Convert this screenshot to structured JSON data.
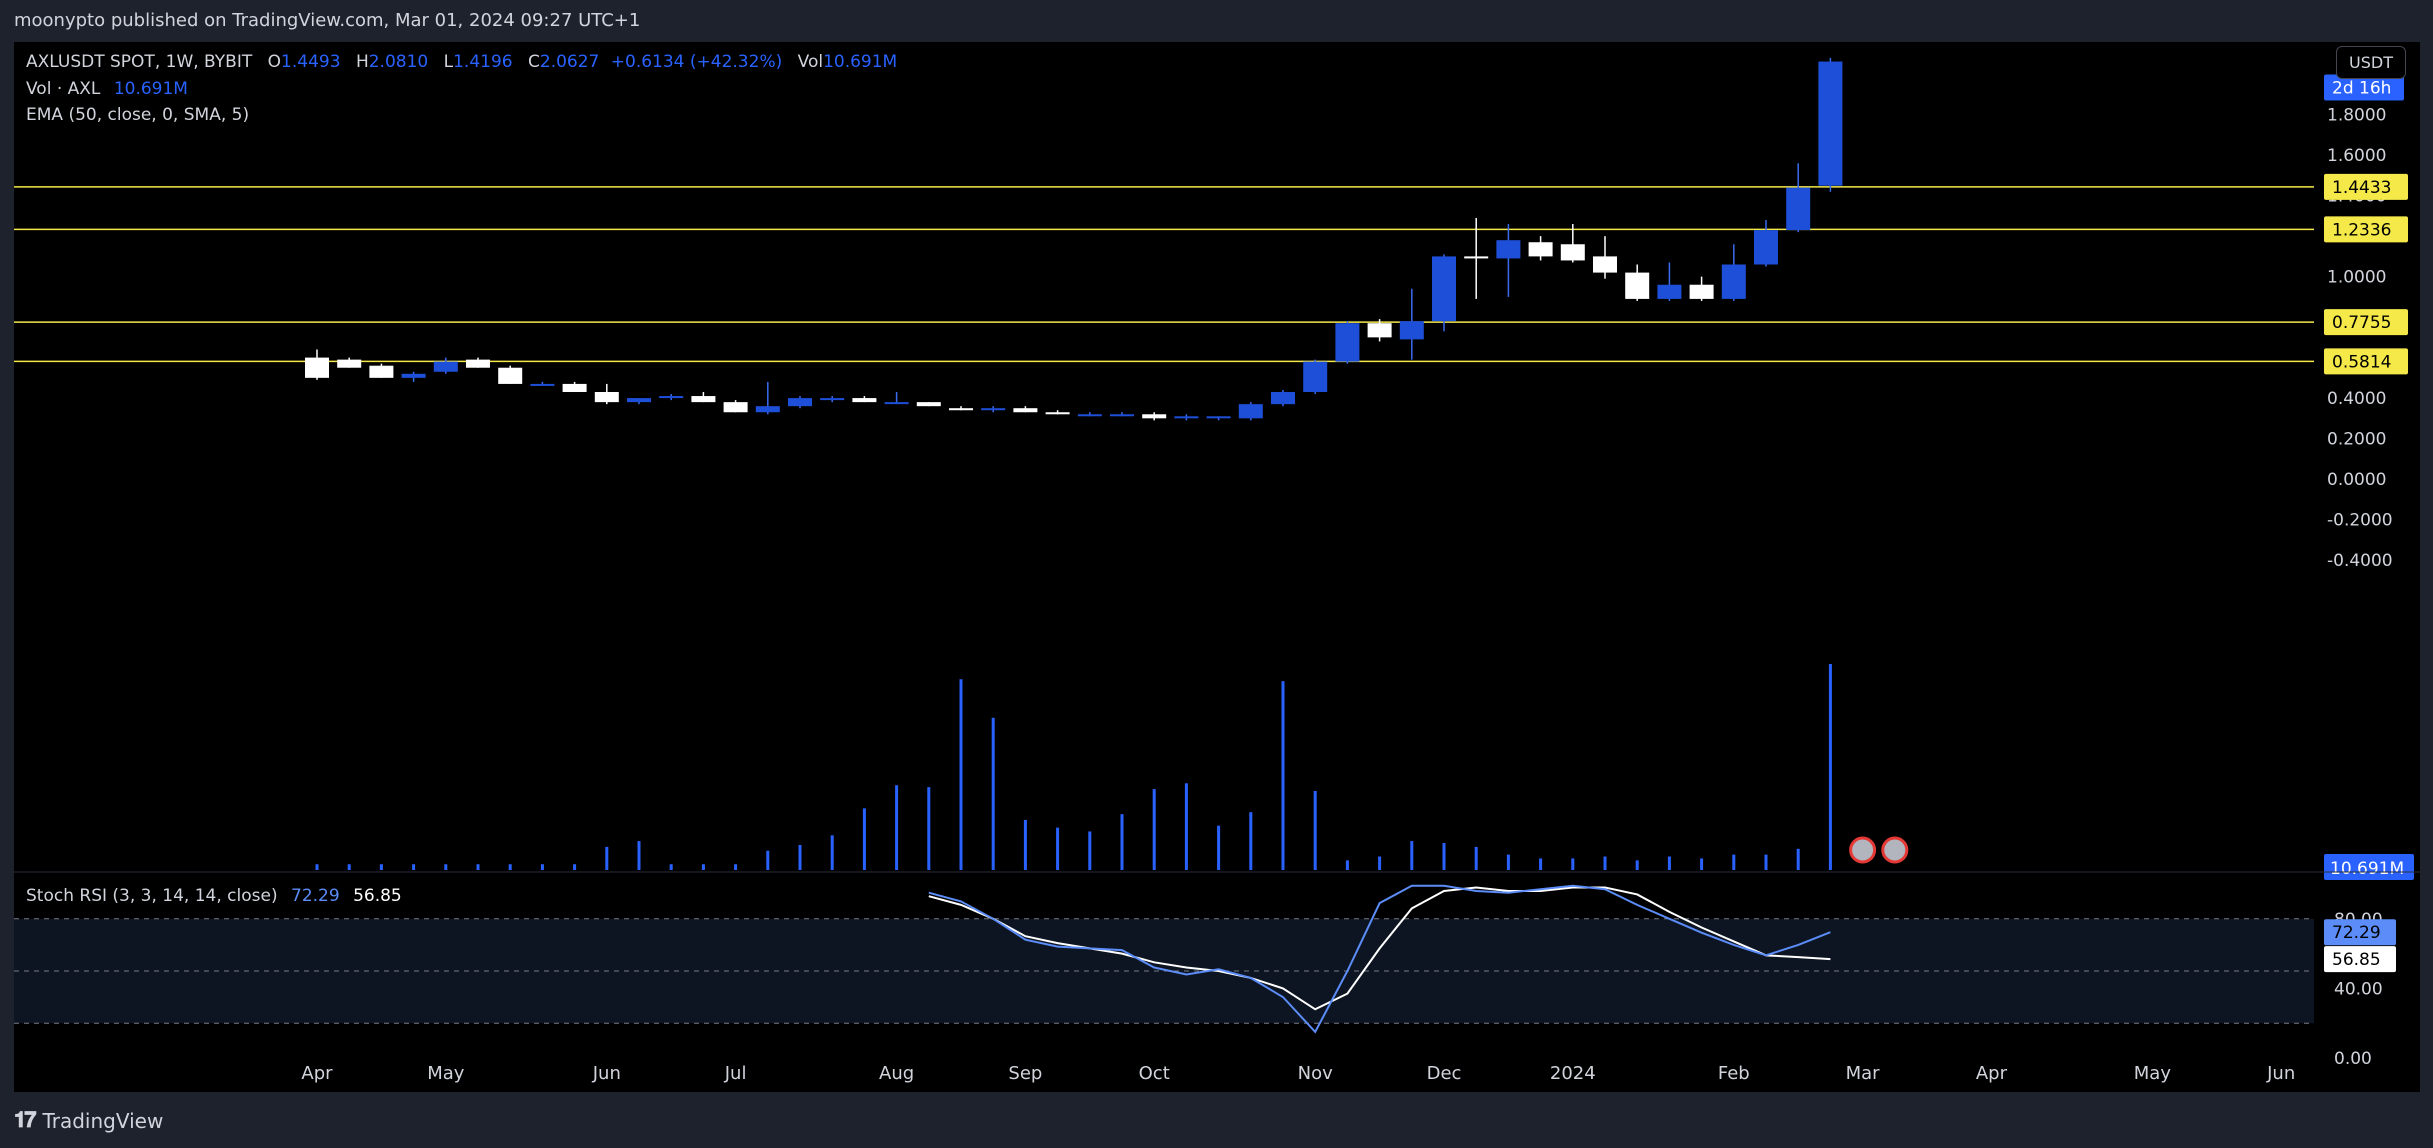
{
  "header": {
    "publisher_line": "moonypto published on TradingView.com, Mar 01, 2024 09:27 UTC+1"
  },
  "legend": {
    "symbol": "AXLUSDT SPOT, 1W, BYBIT",
    "o_label": "O",
    "o_value": "1.4493",
    "h_label": "H",
    "h_value": "2.0810",
    "l_label": "L",
    "l_value": "1.4196",
    "c_label": "C",
    "c_value": "2.0627",
    "change": "+0.6134 (+42.32%)",
    "vol_label": "Vol",
    "vol_value": "10.691M",
    "vol_line_label": "Vol · AXL",
    "vol_line_value": "10.691M",
    "ema_line": "EMA (50, close, 0, SMA, 5)",
    "stoch_label": "Stoch RSI (3, 3, 14, 14, close)",
    "stoch_k": "72.29",
    "stoch_d": "56.85"
  },
  "price_axis": {
    "unit_button": "USDT",
    "ticks": [
      "1.8000",
      "1.6000",
      "1.4000",
      "1.2000",
      "1.0000",
      "0.8000",
      "0.6000",
      "0.4000",
      "0.2000",
      "0.0000",
      "-0.2000",
      "-0.4000"
    ],
    "countdown_tag": "2d 16h",
    "volume_tag": "10.691M"
  },
  "stoch_axis": {
    "ticks": [
      "80.00",
      "40.00",
      "0.00"
    ],
    "k_tag": "72.29",
    "d_tag": "56.85",
    "upper_band": 80,
    "middle_band": 50,
    "lower_band": 20
  },
  "horizontal_levels": [
    {
      "price": 1.4433,
      "label": "1.4433"
    },
    {
      "price": 1.2336,
      "label": "1.2336"
    },
    {
      "price": 0.7755,
      "label": "0.7755"
    },
    {
      "price": 0.5814,
      "label": "0.5814"
    }
  ],
  "time_axis": {
    "labels": [
      {
        "label": "Apr",
        "bar": 0
      },
      {
        "label": "May",
        "bar": 4
      },
      {
        "label": "Jun",
        "bar": 9
      },
      {
        "label": "Jul",
        "bar": 13
      },
      {
        "label": "Aug",
        "bar": 18
      },
      {
        "label": "Sep",
        "bar": 22
      },
      {
        "label": "Oct",
        "bar": 26
      },
      {
        "label": "Nov",
        "bar": 31
      },
      {
        "label": "Dec",
        "bar": 35
      },
      {
        "label": "2024",
        "bar": 39
      },
      {
        "label": "Feb",
        "bar": 44
      },
      {
        "label": "Mar",
        "bar": 48
      },
      {
        "label": "Apr",
        "bar": 52
      },
      {
        "label": "May",
        "bar": 57
      },
      {
        "label": "Jun",
        "bar": 61
      }
    ]
  },
  "colors": {
    "up": "#1e4fd8",
    "down": "#ffffff",
    "level": "#f5e94a",
    "volume": "#2962ff",
    "k_line": "#5b8cf7",
    "d_line": "#ffffff",
    "background": "#000000"
  },
  "chart_data": {
    "type": "candlestick",
    "title": "AXLUSDT SPOT, 1W, BYBIT",
    "ylim": [
      -0.4,
      2.1
    ],
    "candles": [
      [
        0.6,
        0.64,
        0.49,
        0.5
      ],
      [
        0.59,
        0.6,
        0.55,
        0.55
      ],
      [
        0.56,
        0.57,
        0.5,
        0.5
      ],
      [
        0.5,
        0.53,
        0.48,
        0.52
      ],
      [
        0.53,
        0.6,
        0.52,
        0.58
      ],
      [
        0.59,
        0.6,
        0.55,
        0.55
      ],
      [
        0.55,
        0.56,
        0.47,
        0.47
      ],
      [
        0.47,
        0.48,
        0.46,
        0.47
      ],
      [
        0.47,
        0.48,
        0.43,
        0.43
      ],
      [
        0.43,
        0.47,
        0.37,
        0.38
      ],
      [
        0.38,
        0.4,
        0.37,
        0.4
      ],
      [
        0.4,
        0.42,
        0.39,
        0.41
      ],
      [
        0.41,
        0.43,
        0.38,
        0.38
      ],
      [
        0.38,
        0.39,
        0.33,
        0.33
      ],
      [
        0.33,
        0.48,
        0.32,
        0.36
      ],
      [
        0.36,
        0.41,
        0.35,
        0.4
      ],
      [
        0.39,
        0.41,
        0.38,
        0.4
      ],
      [
        0.4,
        0.41,
        0.38,
        0.38
      ],
      [
        0.38,
        0.43,
        0.37,
        0.38
      ],
      [
        0.38,
        0.38,
        0.36,
        0.36
      ],
      [
        0.35,
        0.36,
        0.34,
        0.34
      ],
      [
        0.34,
        0.36,
        0.33,
        0.35
      ],
      [
        0.35,
        0.36,
        0.33,
        0.33
      ],
      [
        0.33,
        0.34,
        0.32,
        0.32
      ],
      [
        0.32,
        0.33,
        0.31,
        0.32
      ],
      [
        0.32,
        0.33,
        0.31,
        0.32
      ],
      [
        0.32,
        0.33,
        0.29,
        0.3
      ],
      [
        0.3,
        0.32,
        0.29,
        0.31
      ],
      [
        0.3,
        0.31,
        0.29,
        0.31
      ],
      [
        0.3,
        0.38,
        0.29,
        0.37
      ],
      [
        0.37,
        0.44,
        0.36,
        0.43
      ],
      [
        0.43,
        0.59,
        0.42,
        0.58
      ],
      [
        0.58,
        0.78,
        0.57,
        0.77
      ],
      [
        0.77,
        0.79,
        0.68,
        0.7
      ],
      [
        0.69,
        0.94,
        0.59,
        0.78
      ],
      [
        0.78,
        1.11,
        0.73,
        1.1
      ],
      [
        1.1,
        1.29,
        0.89,
        1.09
      ],
      [
        1.09,
        1.26,
        0.9,
        1.18
      ],
      [
        1.17,
        1.2,
        1.08,
        1.1
      ],
      [
        1.16,
        1.26,
        1.07,
        1.08
      ],
      [
        1.1,
        1.2,
        0.99,
        1.02
      ],
      [
        1.02,
        1.06,
        0.88,
        0.89
      ],
      [
        0.89,
        1.07,
        0.88,
        0.96
      ],
      [
        0.96,
        1.0,
        0.88,
        0.89
      ],
      [
        0.89,
        1.16,
        0.88,
        1.06
      ],
      [
        1.06,
        1.28,
        1.05,
        1.23
      ],
      [
        1.23,
        1.56,
        1.22,
        1.44
      ],
      [
        1.4493,
        2.081,
        1.4196,
        2.0627
      ]
    ],
    "volume_m": [
      0.3,
      0.3,
      0.3,
      0.3,
      0.3,
      0.3,
      0.3,
      0.3,
      0.3,
      1.2,
      1.5,
      0.3,
      0.3,
      0.3,
      1.0,
      1.3,
      1.8,
      3.2,
      4.4,
      4.3,
      9.9,
      7.9,
      2.6,
      2.2,
      2.0,
      2.9,
      4.2,
      4.5,
      2.3,
      3.0,
      9.8,
      4.1,
      0.5,
      0.7,
      1.5,
      1.4,
      1.2,
      0.8,
      0.6,
      0.6,
      0.7,
      0.5,
      0.7,
      0.6,
      0.8,
      0.8,
      1.1,
      10.691
    ],
    "stoch_k": [
      95,
      90,
      80,
      68,
      64,
      63,
      62,
      52,
      48,
      51,
      46,
      35,
      15,
      50,
      89,
      99,
      99,
      96,
      95,
      97,
      99,
      97,
      88,
      80,
      72,
      65,
      59,
      65,
      72.29
    ],
    "stoch_d": [
      93,
      88,
      80,
      70,
      66,
      63,
      60,
      55,
      52,
      50,
      46,
      40,
      28,
      37,
      63,
      86,
      96,
      98,
      96,
      96,
      98,
      98,
      94,
      84,
      75,
      67,
      59,
      58,
      56.85
    ],
    "stoch_start_bar": 19,
    "ylim_stoch": [
      0,
      100
    ]
  }
}
